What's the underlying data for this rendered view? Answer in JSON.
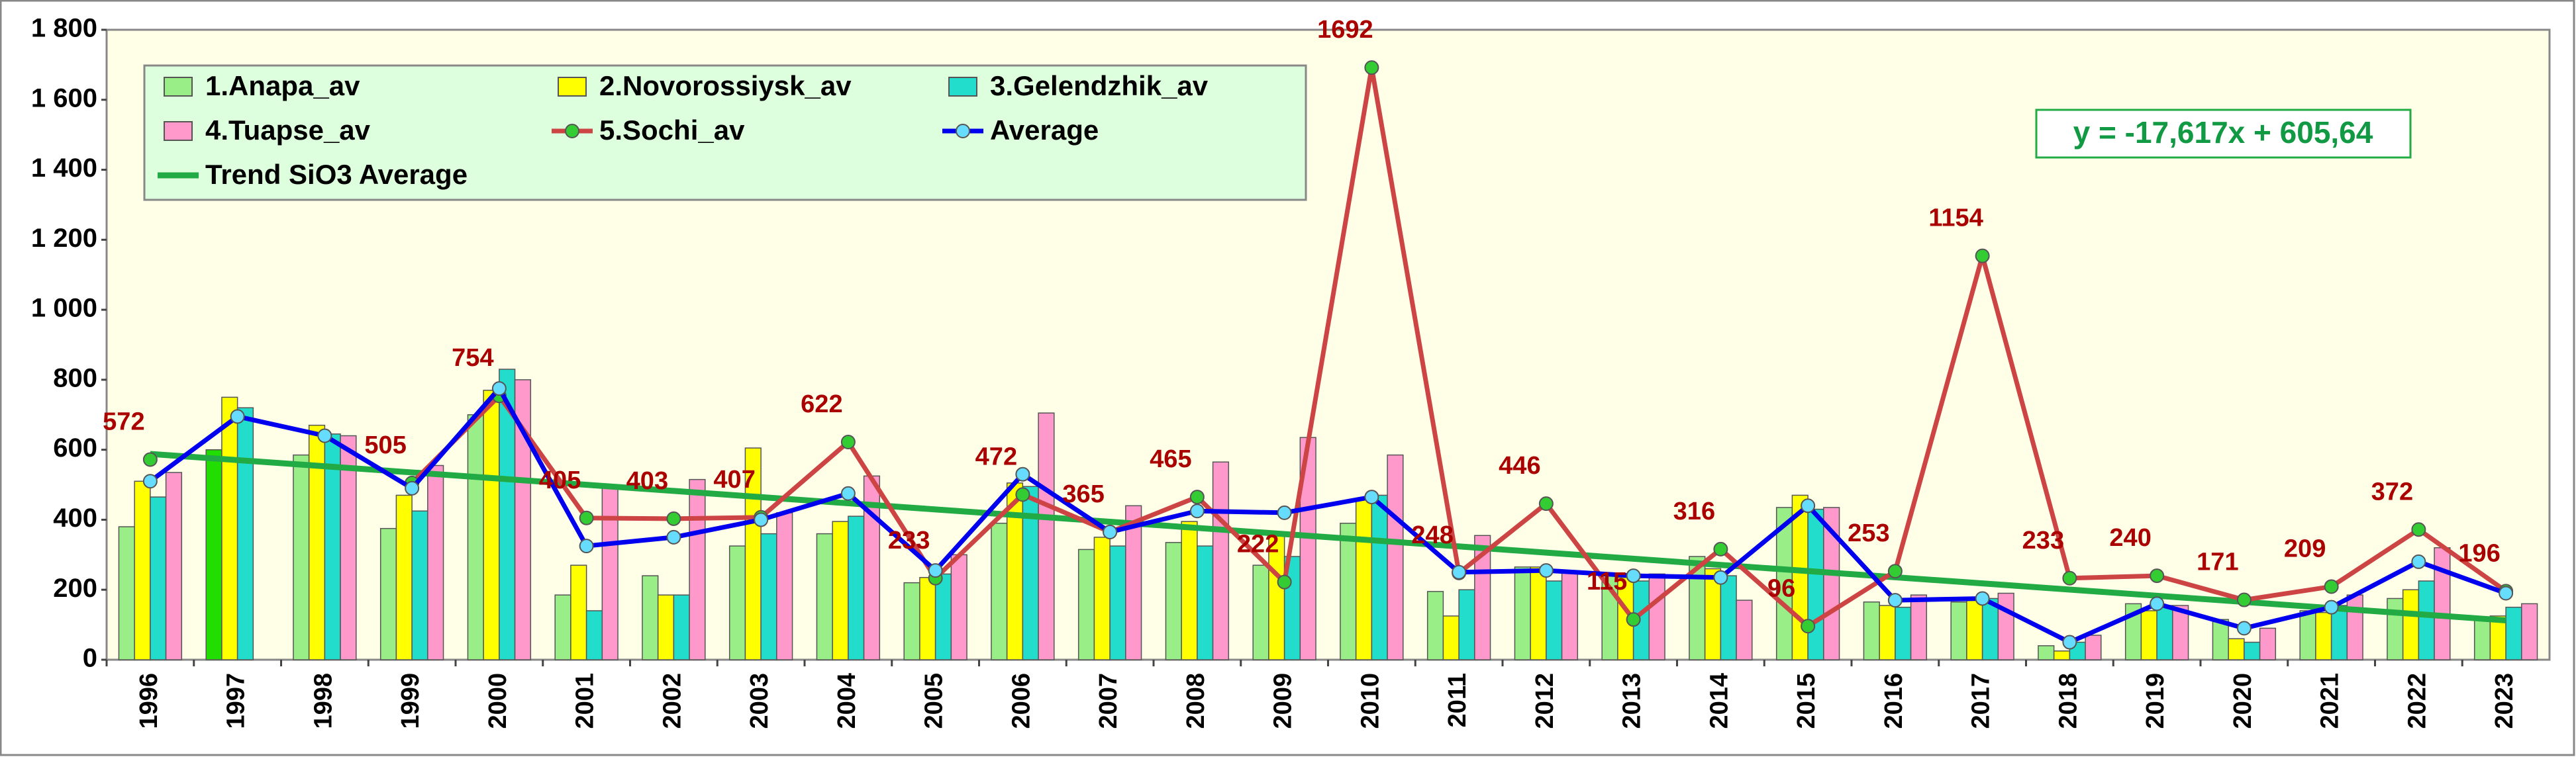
{
  "chart_data": {
    "type": "bar_line",
    "categories": [
      "1996",
      "1997",
      "1998",
      "1999",
      "2000",
      "2001",
      "2002",
      "2003",
      "2004",
      "2005",
      "2006",
      "2007",
      "2008",
      "2009",
      "2010",
      "2011",
      "2012",
      "2013",
      "2014",
      "2015",
      "2016",
      "2017",
      "2018",
      "2019",
      "2020",
      "2021",
      "2022",
      "2023"
    ],
    "series": [
      {
        "name": "1.Anapa_av",
        "kind": "bar",
        "color": "#99ee88",
        "highlight": {
          "index": 1,
          "color": "#22dd00"
        },
        "values": [
          380,
          600,
          585,
          375,
          700,
          185,
          240,
          325,
          360,
          220,
          390,
          315,
          335,
          270,
          390,
          195,
          265,
          240,
          295,
          435,
          165,
          165,
          40,
          160,
          115,
          140,
          175,
          115
        ]
      },
      {
        "name": "2.Novorossiysk_av",
        "kind": "bar",
        "color": "#ffff00",
        "values": [
          510,
          750,
          670,
          470,
          770,
          270,
          185,
          605,
          395,
          235,
          505,
          350,
          395,
          360,
          460,
          125,
          265,
          235,
          260,
          470,
          155,
          170,
          25,
          140,
          60,
          135,
          200,
          125
        ]
      },
      {
        "name": "3.Gelendzhik_av",
        "kind": "bar",
        "color": "#22ddcc",
        "values": [
          465,
          720,
          645,
          425,
          830,
          140,
          185,
          360,
          410,
          245,
          495,
          325,
          325,
          295,
          470,
          200,
          225,
          225,
          240,
          430,
          150,
          175,
          50,
          155,
          50,
          155,
          225,
          150
        ]
      },
      {
        "name": "4.Tuapse_av",
        "kind": "bar",
        "color": "#ff99cc",
        "values": [
          535,
          null,
          640,
          555,
          800,
          490,
          515,
          420,
          525,
          300,
          705,
          440,
          565,
          635,
          585,
          355,
          250,
          245,
          170,
          435,
          185,
          190,
          70,
          155,
          90,
          185,
          320,
          160
        ]
      },
      {
        "name": "5.Sochi_av",
        "kind": "line",
        "color": "#cc4444",
        "marker": "#33cc33",
        "labels": true,
        "values": [
          572,
          null,
          null,
          505,
          754,
          405,
          403,
          407,
          622,
          233,
          472,
          365,
          465,
          222,
          1692,
          248,
          446,
          115,
          316,
          96,
          253,
          1154,
          233,
          240,
          171,
          209,
          372,
          196
        ]
      },
      {
        "name": "Average",
        "kind": "line",
        "color": "#0000ee",
        "marker": "#66ddff",
        "values": [
          510,
          695,
          640,
          490,
          775,
          325,
          350,
          400,
          475,
          255,
          530,
          365,
          425,
          420,
          465,
          250,
          255,
          240,
          235,
          440,
          170,
          175,
          50,
          160,
          90,
          150,
          280,
          190
        ]
      },
      {
        "name": "Trend SiO3 Average",
        "kind": "trend",
        "color": "#22aa44",
        "values": [
          588.0,
          570.4,
          552.8,
          535.2,
          517.6,
          499.9,
          482.3,
          464.7,
          447.1,
          429.5,
          411.9,
          394.2,
          376.6,
          359.0,
          341.4,
          323.8,
          306.1,
          288.5,
          270.9,
          253.3,
          235.7,
          218.1,
          200.5,
          182.8,
          165.2,
          147.6,
          130.0,
          112.4
        ]
      }
    ],
    "equation": "y = -17,617x + 605,64",
    "ylim": [
      0,
      1800
    ],
    "yticks": [
      0,
      200,
      400,
      600,
      800,
      {
        "value": 1000,
        "label": "1 000"
      },
      {
        "value": 1200,
        "label": "1 200"
      },
      {
        "value": 1400,
        "label": "1 400"
      },
      {
        "value": 1600,
        "label": "1 600"
      },
      {
        "value": 1800,
        "label": "1 800"
      }
    ],
    "legend": "upper left"
  }
}
